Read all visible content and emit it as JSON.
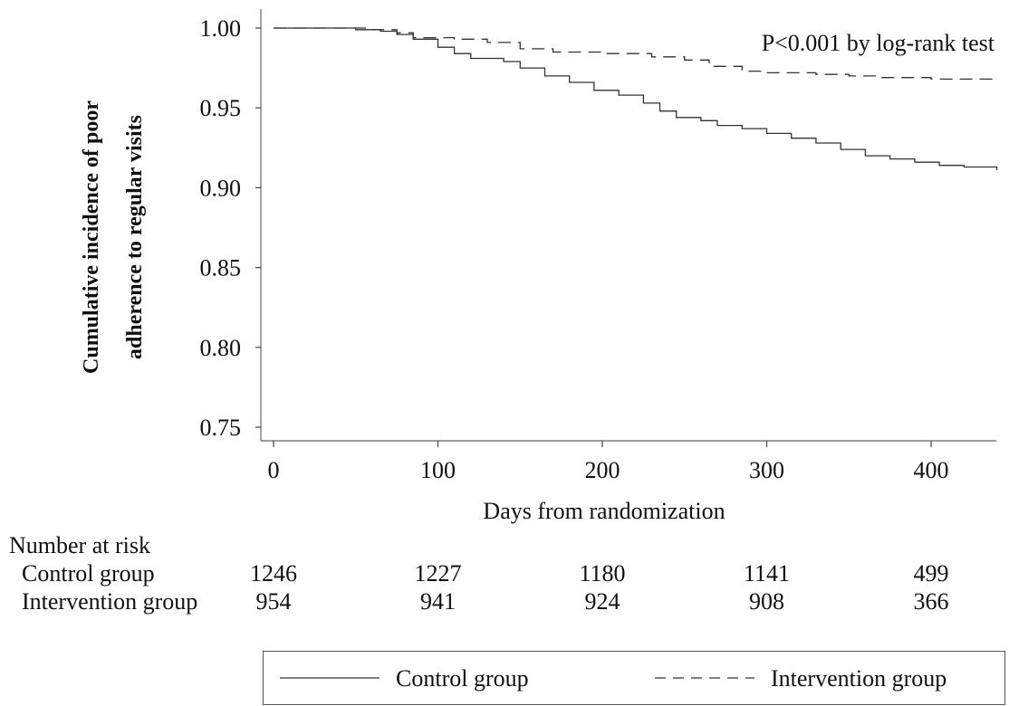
{
  "chart_data": {
    "type": "line",
    "xlabel": "Days from randomization",
    "ylabel_lines": [
      "Cumulative incidence of poor",
      "adherence to regular visits"
    ],
    "xlim": [
      -10,
      440
    ],
    "ylim": [
      0.745,
      1.004
    ],
    "xticks": [
      0,
      100,
      200,
      300,
      400
    ],
    "xtick_labels": [
      "0",
      "100",
      "200",
      "300",
      "400"
    ],
    "yticks": [
      0.75,
      0.8,
      0.85,
      0.9,
      0.95,
      1.0
    ],
    "ytick_labels": [
      "0.75",
      "0.80",
      "0.85",
      "0.90",
      "0.95",
      "1.00"
    ],
    "annotation": "P<0.001 by log-rank test",
    "grid": false,
    "legend_position": "bottom",
    "series": [
      {
        "name": "Control group",
        "style": "solid",
        "points": [
          [
            0,
            1.0
          ],
          [
            40,
            1.0
          ],
          [
            50,
            0.999
          ],
          [
            65,
            0.998
          ],
          [
            75,
            0.996
          ],
          [
            85,
            0.993
          ],
          [
            100,
            0.988
          ],
          [
            110,
            0.984
          ],
          [
            120,
            0.981
          ],
          [
            140,
            0.979
          ],
          [
            150,
            0.975
          ],
          [
            165,
            0.97
          ],
          [
            180,
            0.966
          ],
          [
            195,
            0.961
          ],
          [
            210,
            0.958
          ],
          [
            225,
            0.953
          ],
          [
            235,
            0.948
          ],
          [
            245,
            0.944
          ],
          [
            260,
            0.942
          ],
          [
            270,
            0.939
          ],
          [
            285,
            0.937
          ],
          [
            300,
            0.934
          ],
          [
            315,
            0.931
          ],
          [
            330,
            0.928
          ],
          [
            345,
            0.924
          ],
          [
            360,
            0.92
          ],
          [
            375,
            0.918
          ],
          [
            390,
            0.916
          ],
          [
            405,
            0.914
          ],
          [
            420,
            0.913
          ],
          [
            440,
            0.911
          ]
        ]
      },
      {
        "name": "Intervention group",
        "style": "dashed",
        "points": [
          [
            0,
            1.0
          ],
          [
            40,
            1.0
          ],
          [
            60,
            0.999
          ],
          [
            75,
            0.997
          ],
          [
            85,
            0.994
          ],
          [
            110,
            0.993
          ],
          [
            130,
            0.991
          ],
          [
            150,
            0.987
          ],
          [
            170,
            0.985
          ],
          [
            200,
            0.984
          ],
          [
            230,
            0.982
          ],
          [
            250,
            0.98
          ],
          [
            265,
            0.976
          ],
          [
            285,
            0.973
          ],
          [
            300,
            0.972
          ],
          [
            330,
            0.971
          ],
          [
            350,
            0.97
          ],
          [
            370,
            0.969
          ],
          [
            400,
            0.968
          ],
          [
            420,
            0.968
          ],
          [
            440,
            0.967
          ]
        ]
      }
    ]
  },
  "risk_table": {
    "title": "Number at risk",
    "rows": [
      {
        "label": "Control group",
        "values": [
          "1246",
          "1227",
          "1180",
          "1141",
          "499"
        ]
      },
      {
        "label": "Intervention group",
        "values": [
          "954",
          "941",
          "924",
          "908",
          "366"
        ]
      }
    ]
  },
  "legend": {
    "items": [
      {
        "label": "Control group",
        "style": "solid"
      },
      {
        "label": "Intervention group",
        "style": "dashed"
      }
    ]
  }
}
